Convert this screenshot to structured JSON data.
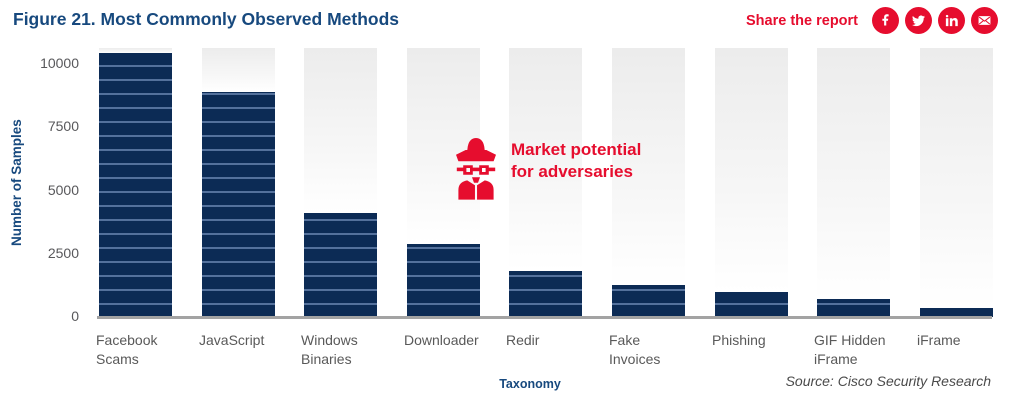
{
  "header": {
    "title": "Figure 21. Most Commonly Observed Methods",
    "share_label": "Share the report",
    "social_icons": [
      "facebook-icon",
      "twitter-icon",
      "linkedin-icon",
      "email-icon"
    ]
  },
  "chart_data": {
    "type": "bar",
    "title": "Figure 21. Most Commonly Observed Methods",
    "xlabel": "Taxonomy",
    "ylabel": "Number of Samples",
    "ylim": [
      0,
      10000
    ],
    "yticks": [
      0,
      2500,
      5000,
      7500,
      10000
    ],
    "grid": false,
    "legend": false,
    "categories": [
      "Facebook Scams",
      "JavaScript",
      "Windows Binaries",
      "Downloader",
      "Redir",
      "Fake Invoices",
      "Phishing",
      "GIF Hidden iFrame",
      "iFrame"
    ],
    "values": [
      10450,
      8900,
      4100,
      2900,
      1800,
      1250,
      1000,
      700,
      350
    ],
    "annotation": "Market potential for adversaries",
    "bar_color": "#0c2b55",
    "bar_stripe_color": "#54719c",
    "column_background": "#ececec"
  },
  "annotation": {
    "text": "Market potential for adversaries"
  },
  "footer": {
    "source": "Source: Cisco Security Research"
  },
  "colors": {
    "accent_red": "#e60d2e",
    "heading_blue": "#17497e",
    "bar_navy": "#0c2b55",
    "tick_gray": "#58585b"
  }
}
